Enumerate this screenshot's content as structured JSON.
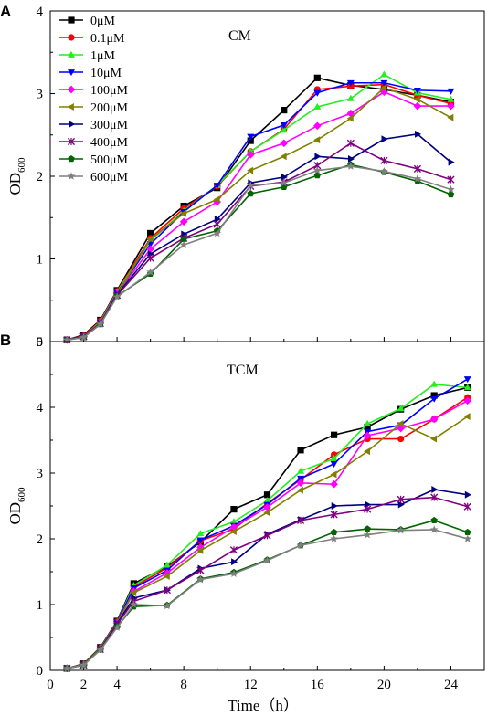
{
  "chart_data": [
    {
      "type": "line",
      "panel_label": "A",
      "title": "CM",
      "ylabel_main": "OD",
      "ylabel_sub": "600",
      "xlabel": "",
      "xlim": [
        0,
        26
      ],
      "ylim": [
        0,
        4
      ],
      "yticks": [
        0,
        1,
        2,
        3,
        4
      ],
      "xticks": [
        0,
        2,
        4,
        8,
        12,
        16,
        20,
        24
      ],
      "show_xtick_labels": false,
      "legend": "top-left",
      "series": [
        {
          "name": "0μM",
          "color": "#000000",
          "marker": "square",
          "x": [
            1,
            2,
            3,
            4,
            6,
            8,
            10,
            12,
            14,
            16,
            18,
            20,
            22,
            24
          ],
          "y": [
            0.02,
            0.08,
            0.26,
            0.62,
            1.31,
            1.64,
            1.86,
            2.43,
            2.8,
            3.19,
            3.1,
            3.05,
            2.98,
            2.9
          ]
        },
        {
          "name": "0.1μM",
          "color": "#ff0000",
          "marker": "circle",
          "x": [
            1,
            2,
            3,
            4,
            6,
            8,
            10,
            12,
            14,
            16,
            18,
            20,
            22,
            24
          ],
          "y": [
            0.02,
            0.07,
            0.25,
            0.61,
            1.25,
            1.61,
            1.88,
            2.3,
            2.57,
            3.05,
            3.09,
            3.11,
            2.98,
            2.88
          ]
        },
        {
          "name": "1μM",
          "color": "#22ee22",
          "marker": "triangle-up",
          "x": [
            1,
            2,
            3,
            4,
            6,
            8,
            10,
            12,
            14,
            16,
            18,
            20,
            22,
            24
          ],
          "y": [
            0.02,
            0.06,
            0.24,
            0.6,
            1.22,
            1.58,
            1.89,
            2.3,
            2.56,
            2.84,
            2.94,
            3.23,
            3.01,
            2.93
          ]
        },
        {
          "name": "10μM",
          "color": "#0000ff",
          "marker": "triangle-down",
          "x": [
            1,
            2,
            3,
            4,
            6,
            8,
            10,
            12,
            14,
            16,
            18,
            20,
            22,
            24
          ],
          "y": [
            0.02,
            0.06,
            0.23,
            0.59,
            1.18,
            1.57,
            1.89,
            2.48,
            2.62,
            3.01,
            3.13,
            3.13,
            3.04,
            3.03
          ]
        },
        {
          "name": "100μM",
          "color": "#ff00ff",
          "marker": "diamond",
          "x": [
            1,
            2,
            3,
            4,
            6,
            8,
            10,
            12,
            14,
            16,
            18,
            20,
            22,
            24
          ],
          "y": [
            0.02,
            0.06,
            0.23,
            0.58,
            1.12,
            1.45,
            1.69,
            2.26,
            2.4,
            2.61,
            2.76,
            3.02,
            2.85,
            2.85
          ]
        },
        {
          "name": "200μM",
          "color": "#808000",
          "marker": "triangle-left",
          "x": [
            1,
            2,
            3,
            4,
            6,
            8,
            10,
            12,
            14,
            16,
            18,
            20,
            22,
            24
          ],
          "y": [
            0.02,
            0.06,
            0.23,
            0.57,
            1.24,
            1.55,
            1.72,
            2.07,
            2.24,
            2.44,
            2.7,
            3.07,
            2.93,
            2.71
          ]
        },
        {
          "name": "300μM",
          "color": "#000080",
          "marker": "triangle-right",
          "x": [
            1,
            2,
            3,
            4,
            6,
            8,
            10,
            12,
            14,
            16,
            18,
            20,
            22,
            24
          ],
          "y": [
            0.02,
            0.06,
            0.22,
            0.57,
            1.06,
            1.3,
            1.48,
            1.92,
            1.99,
            2.24,
            2.21,
            2.45,
            2.51,
            2.17
          ]
        },
        {
          "name": "400μM",
          "color": "#800080",
          "marker": "x",
          "x": [
            1,
            2,
            3,
            4,
            6,
            8,
            10,
            12,
            14,
            16,
            18,
            20,
            22,
            24
          ],
          "y": [
            0.02,
            0.06,
            0.22,
            0.56,
            1.01,
            1.25,
            1.42,
            1.88,
            1.93,
            2.13,
            2.4,
            2.19,
            2.09,
            1.96
          ]
        },
        {
          "name": "500μM",
          "color": "#006400",
          "marker": "pentagon",
          "x": [
            1,
            2,
            3,
            4,
            6,
            8,
            10,
            12,
            14,
            16,
            18,
            20,
            22,
            24
          ],
          "y": [
            0.02,
            0.05,
            0.21,
            0.55,
            0.82,
            1.24,
            1.34,
            1.79,
            1.87,
            2.01,
            2.14,
            2.05,
            1.94,
            1.78
          ]
        },
        {
          "name": "600μM",
          "color": "#808080",
          "marker": "star",
          "x": [
            1,
            2,
            3,
            4,
            6,
            8,
            10,
            12,
            14,
            16,
            18,
            20,
            22,
            24
          ],
          "y": [
            0.02,
            0.05,
            0.21,
            0.54,
            0.84,
            1.17,
            1.31,
            1.89,
            1.92,
            2.07,
            2.12,
            2.06,
            1.97,
            1.84
          ]
        }
      ]
    },
    {
      "type": "line",
      "panel_label": "B",
      "title": "TCM",
      "ylabel_main": "OD",
      "ylabel_sub": "600",
      "xlabel": "Time（h）",
      "xlim": [
        0,
        26
      ],
      "ylim": [
        0,
        5
      ],
      "yticks": [
        0,
        1,
        2,
        3,
        4,
        5
      ],
      "xticks": [
        0,
        2,
        4,
        8,
        12,
        16,
        20,
        24
      ],
      "show_xtick_labels": true,
      "series": [
        {
          "name": "0μM",
          "color": "#000000",
          "marker": "square",
          "x": [
            1,
            2,
            3,
            4,
            5,
            7,
            9,
            11,
            13,
            15,
            17,
            19,
            21,
            23,
            25
          ],
          "y": [
            0.03,
            0.1,
            0.35,
            0.75,
            1.32,
            1.58,
            1.95,
            2.45,
            2.67,
            3.35,
            3.58,
            3.7,
            3.97,
            4.18,
            4.3
          ]
        },
        {
          "name": "0.1μM",
          "color": "#ff0000",
          "marker": "circle",
          "x": [
            1,
            2,
            3,
            4,
            5,
            7,
            9,
            11,
            13,
            15,
            17,
            19,
            21,
            23,
            25
          ],
          "y": [
            0.03,
            0.09,
            0.34,
            0.74,
            1.27,
            1.56,
            1.97,
            2.15,
            2.54,
            2.9,
            3.28,
            3.52,
            3.52,
            3.82,
            4.15
          ]
        },
        {
          "name": "1μM",
          "color": "#22ee22",
          "marker": "triangle-up",
          "x": [
            1,
            2,
            3,
            4,
            5,
            7,
            9,
            11,
            13,
            15,
            17,
            19,
            21,
            23,
            25
          ],
          "y": [
            0.03,
            0.09,
            0.34,
            0.73,
            1.29,
            1.6,
            2.08,
            2.26,
            2.58,
            3.03,
            3.22,
            3.75,
            3.98,
            4.35,
            4.3
          ]
        },
        {
          "name": "10μM",
          "color": "#0000ff",
          "marker": "triangle-down",
          "x": [
            1,
            2,
            3,
            4,
            5,
            7,
            9,
            11,
            13,
            15,
            17,
            19,
            21,
            23,
            25
          ],
          "y": [
            0.03,
            0.09,
            0.33,
            0.73,
            1.25,
            1.52,
            1.98,
            2.2,
            2.52,
            2.92,
            3.14,
            3.63,
            3.73,
            4.13,
            4.43
          ]
        },
        {
          "name": "100μM",
          "color": "#ff00ff",
          "marker": "diamond",
          "x": [
            1,
            2,
            3,
            4,
            5,
            7,
            9,
            11,
            13,
            15,
            17,
            19,
            21,
            23,
            25
          ],
          "y": [
            0.03,
            0.09,
            0.33,
            0.72,
            1.2,
            1.48,
            1.87,
            2.18,
            2.48,
            2.85,
            2.83,
            3.57,
            3.68,
            3.82,
            4.1
          ]
        },
        {
          "name": "200μM",
          "color": "#808000",
          "marker": "triangle-left",
          "x": [
            1,
            2,
            3,
            4,
            5,
            7,
            9,
            11,
            13,
            15,
            17,
            19,
            21,
            23,
            25
          ],
          "y": [
            0.03,
            0.09,
            0.33,
            0.72,
            1.18,
            1.43,
            1.82,
            2.11,
            2.4,
            2.74,
            2.98,
            3.33,
            3.75,
            3.52,
            3.86
          ]
        },
        {
          "name": "300μM",
          "color": "#000080",
          "marker": "triangle-right",
          "x": [
            1,
            2,
            3,
            4,
            5,
            7,
            9,
            11,
            13,
            15,
            17,
            19,
            21,
            23,
            25
          ],
          "y": [
            0.03,
            0.08,
            0.32,
            0.71,
            1.1,
            1.22,
            1.55,
            1.65,
            2.07,
            2.29,
            2.5,
            2.52,
            2.52,
            2.75,
            2.67
          ]
        },
        {
          "name": "400μM",
          "color": "#800080",
          "marker": "x",
          "x": [
            1,
            2,
            3,
            4,
            5,
            7,
            9,
            11,
            13,
            15,
            17,
            19,
            21,
            23,
            25
          ],
          "y": [
            0.03,
            0.08,
            0.32,
            0.7,
            1.05,
            1.22,
            1.52,
            1.83,
            2.05,
            2.28,
            2.37,
            2.45,
            2.6,
            2.63,
            2.49
          ]
        },
        {
          "name": "500μM",
          "color": "#006400",
          "marker": "pentagon",
          "x": [
            1,
            2,
            3,
            4,
            5,
            7,
            9,
            11,
            13,
            15,
            17,
            19,
            21,
            23,
            25
          ],
          "y": [
            0.03,
            0.08,
            0.32,
            0.66,
            0.97,
            0.99,
            1.39,
            1.49,
            1.68,
            1.9,
            2.1,
            2.15,
            2.14,
            2.28,
            2.1
          ]
        },
        {
          "name": "600μM",
          "color": "#808080",
          "marker": "star",
          "x": [
            1,
            2,
            3,
            4,
            5,
            7,
            9,
            11,
            13,
            15,
            17,
            19,
            21,
            23,
            25
          ],
          "y": [
            0.03,
            0.08,
            0.31,
            0.65,
            1.0,
            0.98,
            1.38,
            1.47,
            1.67,
            1.9,
            2.0,
            2.06,
            2.13,
            2.14,
            2.0
          ]
        }
      ]
    }
  ]
}
